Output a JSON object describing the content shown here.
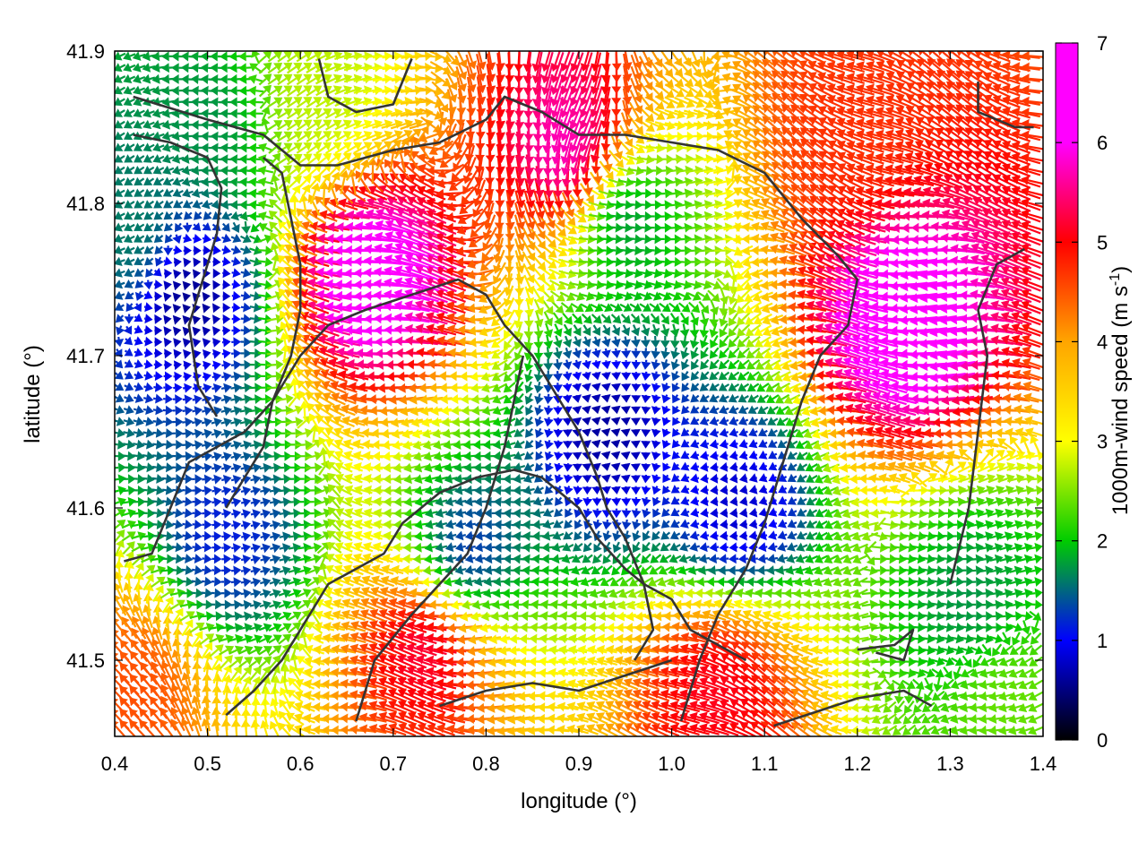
{
  "chart_data": {
    "type": "vector-field",
    "title": "",
    "xlabel": "longitude (°)",
    "ylabel": "latitude (°)",
    "colorbar_label": "1000m-wind speed (m s⁻¹)",
    "colorbar_label_base": "1000m-wind speed (m s",
    "colorbar_label_sup": "-1",
    "colorbar_label_end": ")",
    "xlim": [
      0.4,
      1.4
    ],
    "ylim": [
      41.45,
      41.9
    ],
    "clim": [
      0,
      7
    ],
    "x_ticks": [
      "0.4",
      "0.5",
      "0.6",
      "0.7",
      "0.8",
      "0.9",
      "1.0",
      "1.1",
      "1.2",
      "1.3",
      "1.4"
    ],
    "y_ticks": [
      "41.5",
      "41.6",
      "41.7",
      "41.8",
      "41.9"
    ],
    "colorbar_ticks": [
      "0",
      "1",
      "2",
      "3",
      "4",
      "5",
      "6",
      "7"
    ],
    "colormap": [
      "#000000",
      "#0000ff",
      "#00cc00",
      "#ffff00",
      "#ffa500",
      "#ff0000",
      "#ff00ff"
    ],
    "grid": false,
    "wind_regions": [
      {
        "lon": 0.48,
        "lat": 41.74,
        "speed": 0.6,
        "dir_deg": 0
      },
      {
        "lon": 0.52,
        "lat": 41.58,
        "speed": 1.3,
        "dir_deg": 0
      },
      {
        "lon": 0.78,
        "lat": 41.57,
        "speed": 1.4,
        "dir_deg": 180
      },
      {
        "lon": 0.93,
        "lat": 41.65,
        "speed": 0.7,
        "dir_deg": 270
      },
      {
        "lon": 1.07,
        "lat": 41.6,
        "speed": 0.9,
        "dir_deg": 200
      },
      {
        "lon": 0.95,
        "lat": 41.79,
        "speed": 2.0,
        "dir_deg": 10
      },
      {
        "lon": 0.5,
        "lat": 41.85,
        "speed": 2.0,
        "dir_deg": 190
      },
      {
        "lon": 0.42,
        "lat": 41.78,
        "speed": 1.9,
        "dir_deg": 200
      },
      {
        "lon": 1.32,
        "lat": 41.54,
        "speed": 2.0,
        "dir_deg": 5
      },
      {
        "lon": 0.68,
        "lat": 41.75,
        "speed": 7.5,
        "dir_deg": 165
      },
      {
        "lon": 1.25,
        "lat": 41.72,
        "speed": 7.5,
        "dir_deg": 175
      },
      {
        "lon": 0.89,
        "lat": 41.84,
        "speed": 6.8,
        "dir_deg": 260
      },
      {
        "lon": 0.74,
        "lat": 41.51,
        "speed": 6.2,
        "dir_deg": 170
      },
      {
        "lon": 1.05,
        "lat": 41.48,
        "speed": 6.0,
        "dir_deg": 150
      },
      {
        "lon": 1.2,
        "lat": 41.85,
        "speed": 5.5,
        "dir_deg": 150
      },
      {
        "lon": 0.42,
        "lat": 41.48,
        "speed": 5.3,
        "dir_deg": 120
      },
      {
        "lon": 0.62,
        "lat": 41.87,
        "speed": 3.2,
        "dir_deg": 20
      },
      {
        "lon": 1.36,
        "lat": 41.47,
        "speed": 2.8,
        "dir_deg": 200
      }
    ],
    "background_flow": {
      "speed": 3.8,
      "dir_deg": 200
    },
    "coastlines": [
      [
        [
          0.42,
          41.87
        ],
        [
          0.5,
          41.855
        ],
        [
          0.56,
          41.845
        ],
        [
          0.6,
          41.825
        ],
        [
          0.64,
          41.825
        ],
        [
          0.67,
          41.83
        ],
        [
          0.7,
          41.835
        ],
        [
          0.75,
          41.84
        ],
        [
          0.8,
          41.855
        ],
        [
          0.82,
          41.87
        ],
        [
          0.86,
          41.86
        ],
        [
          0.9,
          41.845
        ],
        [
          0.95,
          41.845
        ],
        [
          1.0,
          41.84
        ],
        [
          1.05,
          41.835
        ],
        [
          1.1,
          41.82
        ],
        [
          1.14,
          41.79
        ],
        [
          1.18,
          41.765
        ],
        [
          1.2,
          41.75
        ],
        [
          1.19,
          41.72
        ],
        [
          1.16,
          41.7
        ],
        [
          1.14,
          41.67
        ],
        [
          1.12,
          41.63
        ],
        [
          1.1,
          41.59
        ],
        [
          1.08,
          41.56
        ],
        [
          1.05,
          41.53
        ],
        [
          1.03,
          41.5
        ],
        [
          1.01,
          41.46
        ]
      ],
      [
        [
          0.42,
          41.845
        ],
        [
          0.46,
          41.84
        ],
        [
          0.5,
          41.83
        ],
        [
          0.515,
          41.81
        ],
        [
          0.51,
          41.78
        ],
        [
          0.5,
          41.76
        ],
        [
          0.49,
          41.74
        ],
        [
          0.48,
          41.72
        ],
        [
          0.49,
          41.68
        ],
        [
          0.51,
          41.66
        ]
      ],
      [
        [
          0.41,
          41.565
        ],
        [
          0.44,
          41.57
        ],
        [
          0.46,
          41.6
        ],
        [
          0.48,
          41.63
        ],
        [
          0.51,
          41.64
        ],
        [
          0.54,
          41.65
        ],
        [
          0.57,
          41.67
        ],
        [
          0.6,
          41.7
        ],
        [
          0.63,
          41.72
        ],
        [
          0.67,
          41.73
        ],
        [
          0.72,
          41.74
        ],
        [
          0.77,
          41.75
        ],
        [
          0.8,
          41.74
        ],
        [
          0.82,
          41.72
        ],
        [
          0.85,
          41.7
        ],
        [
          0.87,
          41.68
        ],
        [
          0.9,
          41.65
        ],
        [
          0.92,
          41.62
        ],
        [
          0.93,
          41.6
        ],
        [
          0.95,
          41.58
        ],
        [
          0.97,
          41.55
        ],
        [
          0.98,
          41.52
        ],
        [
          0.96,
          41.5
        ]
      ],
      [
        [
          0.52,
          41.464
        ],
        [
          0.55,
          41.48
        ],
        [
          0.58,
          41.5
        ],
        [
          0.6,
          41.52
        ],
        [
          0.63,
          41.55
        ],
        [
          0.66,
          41.56
        ],
        [
          0.69,
          41.57
        ],
        [
          0.71,
          41.59
        ],
        [
          0.75,
          41.61
        ],
        [
          0.79,
          41.62
        ],
        [
          0.83,
          41.625
        ],
        [
          0.86,
          41.62
        ],
        [
          0.9,
          41.6
        ],
        [
          0.92,
          41.58
        ],
        [
          0.95,
          41.56
        ],
        [
          0.97,
          41.55
        ],
        [
          1.0,
          41.54
        ],
        [
          1.02,
          41.52
        ],
        [
          1.05,
          41.51
        ],
        [
          1.08,
          41.5
        ]
      ],
      [
        [
          0.56,
          41.83
        ],
        [
          0.58,
          41.82
        ],
        [
          0.59,
          41.79
        ],
        [
          0.6,
          41.76
        ],
        [
          0.6,
          41.73
        ],
        [
          0.59,
          41.7
        ],
        [
          0.57,
          41.67
        ],
        [
          0.56,
          41.64
        ],
        [
          0.54,
          41.62
        ],
        [
          0.52,
          41.6
        ]
      ],
      [
        [
          0.66,
          41.46
        ],
        [
          0.68,
          41.5
        ],
        [
          0.72,
          41.53
        ],
        [
          0.75,
          41.55
        ],
        [
          0.78,
          41.57
        ],
        [
          0.8,
          41.6
        ],
        [
          0.82,
          41.64
        ],
        [
          0.83,
          41.67
        ],
        [
          0.84,
          41.7
        ]
      ],
      [
        [
          0.75,
          41.47
        ],
        [
          0.8,
          41.48
        ],
        [
          0.85,
          41.485
        ],
        [
          0.9,
          41.48
        ],
        [
          0.95,
          41.49
        ],
        [
          1.0,
          41.5
        ]
      ],
      [
        [
          1.11,
          41.457
        ],
        [
          1.15,
          41.465
        ],
        [
          1.2,
          41.475
        ],
        [
          1.25,
          41.48
        ],
        [
          1.28,
          41.47
        ]
      ],
      [
        [
          1.3,
          41.55
        ],
        [
          1.32,
          41.6
        ],
        [
          1.33,
          41.65
        ],
        [
          1.34,
          41.7
        ],
        [
          1.33,
          41.73
        ],
        [
          1.35,
          41.76
        ],
        [
          1.38,
          41.77
        ]
      ],
      [
        [
          1.2,
          41.507
        ],
        [
          1.24,
          41.51
        ],
        [
          1.26,
          41.52
        ],
        [
          1.25,
          41.5
        ],
        [
          1.22,
          41.505
        ]
      ],
      [
        [
          0.62,
          41.895
        ],
        [
          0.63,
          41.87
        ],
        [
          0.66,
          41.86
        ],
        [
          0.7,
          41.865
        ],
        [
          0.72,
          41.895
        ]
      ],
      [
        [
          1.33,
          41.88
        ],
        [
          1.33,
          41.86
        ],
        [
          1.37,
          41.85
        ],
        [
          1.39,
          41.85
        ]
      ]
    ]
  }
}
